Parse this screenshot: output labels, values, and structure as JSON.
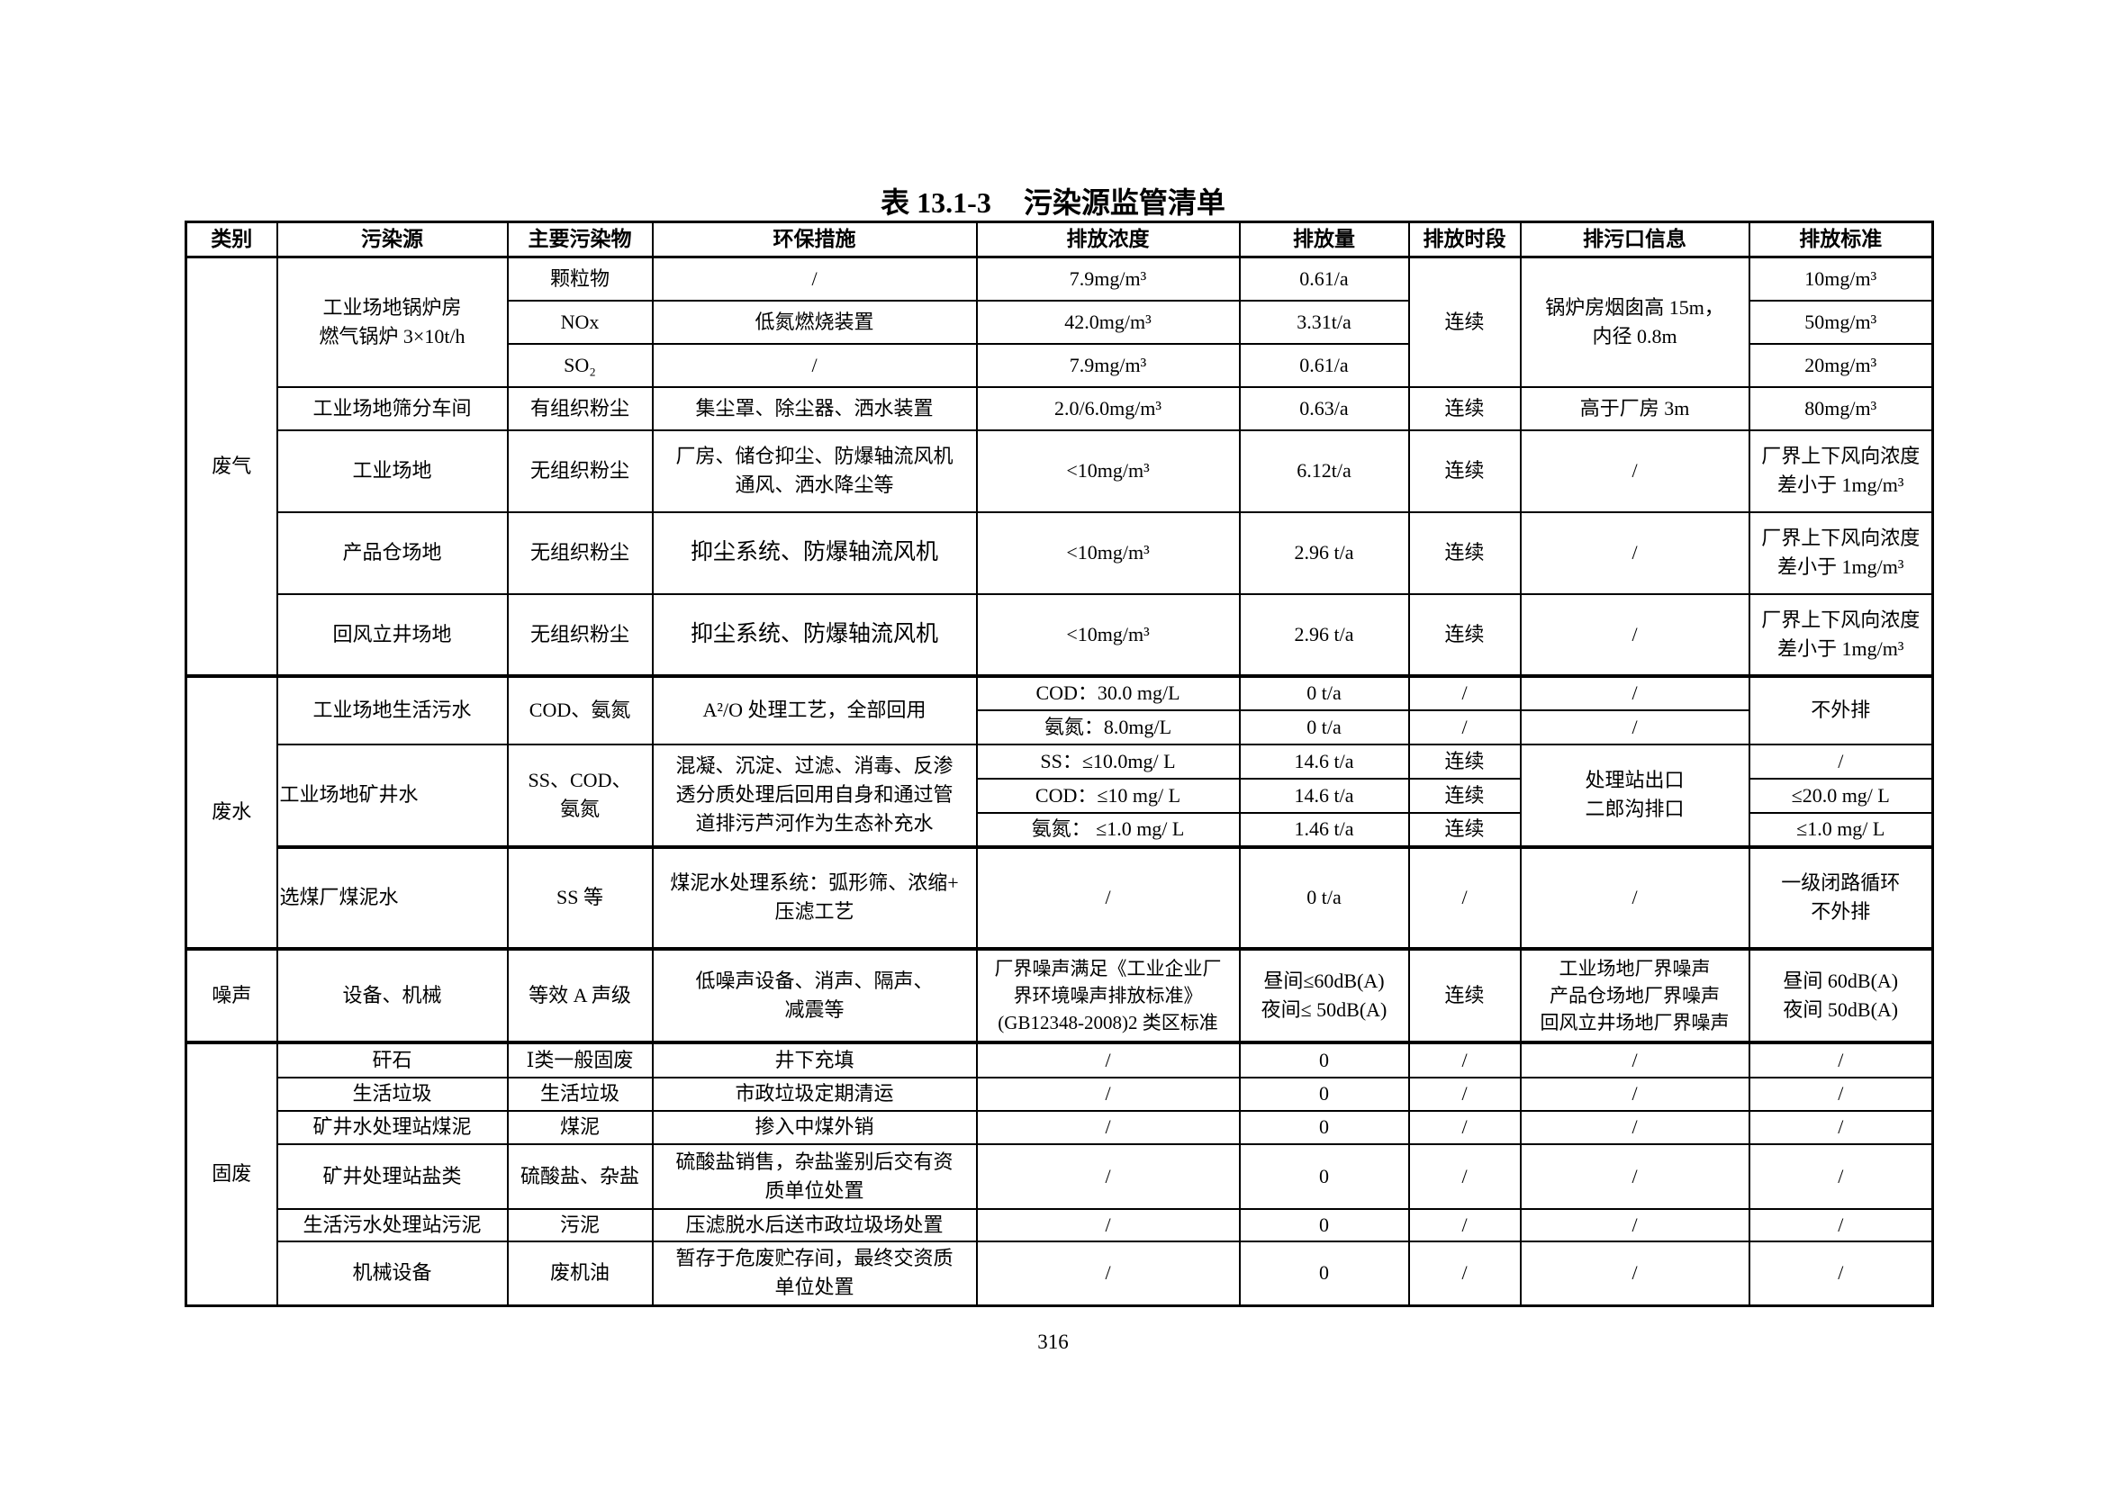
{
  "title": {
    "number": "表 13.1-3",
    "text": "污染源监管清单"
  },
  "headers": [
    "类别",
    "污染源",
    "主要污染物",
    "环保措施",
    "排放浓度",
    "排放量",
    "排放时段",
    "排污口信息",
    "排放标准"
  ],
  "gas": {
    "category": "废气",
    "boiler": {
      "source": "工业场地锅炉房\n燃气锅炉 3×10t/h",
      "period": "连续",
      "outlet": "锅炉房烟囱高 15m，\n内径 0.8m",
      "items": [
        {
          "pollutant": "颗粒物",
          "measure": "/",
          "conc": "7.9mg/m³",
          "amount": "0.61/a",
          "standard": "10mg/m³"
        },
        {
          "pollutant": "NOx",
          "measure": "低氮燃烧装置",
          "conc": "42.0mg/m³",
          "amount": "3.31t/a",
          "standard": "50mg/m³"
        },
        {
          "pollutant": "SO₂",
          "measure": "/",
          "conc": "7.9mg/m³",
          "amount": "0.61/a",
          "standard": "20mg/m³"
        }
      ]
    },
    "rows": [
      {
        "source": "工业场地筛分车间",
        "pollutant": "有组织粉尘",
        "measure": "集尘罩、除尘器、洒水装置",
        "conc": "2.0/6.0mg/m³",
        "amount": "0.63/a",
        "period": "连续",
        "outlet": "高于厂房 3m",
        "standard": "80mg/m³"
      },
      {
        "source": "工业场地",
        "pollutant": "无组织粉尘",
        "measure": "厂房、储仓抑尘、防爆轴流风机\n通风、洒水降尘等",
        "conc": "<10mg/m³",
        "amount": "6.12t/a",
        "period": "连续",
        "outlet": "/",
        "standard": "厂界上下风向浓度\n差小于 1mg/m³"
      },
      {
        "source": "产品仓场地",
        "pollutant": "无组织粉尘",
        "measure": "抑尘系统、防爆轴流风机",
        "conc": "<10mg/m³",
        "amount": "2.96 t/a",
        "period": "连续",
        "outlet": "/",
        "standard": "厂界上下风向浓度\n差小于 1mg/m³"
      },
      {
        "source": "回风立井场地",
        "pollutant": "无组织粉尘",
        "measure": "抑尘系统、防爆轴流风机",
        "conc": "<10mg/m³",
        "amount": "2.96 t/a",
        "period": "连续",
        "outlet": "/",
        "standard": "厂界上下风向浓度\n差小于 1mg/m³"
      }
    ]
  },
  "water": {
    "category": "废水",
    "domestic": {
      "source": "工业场地生活污水",
      "pollutant": "COD、氨氮",
      "measure": "A²/O 处理工艺，全部回用",
      "standard": "不外排",
      "items": [
        {
          "conc": "COD：30.0 mg/L",
          "amount": "0 t/a",
          "period": "/",
          "outlet": "/"
        },
        {
          "conc": "氨氮：8.0mg/L",
          "amount": "0 t/a",
          "period": "/",
          "outlet": "/"
        }
      ]
    },
    "mine": {
      "source": "工业场地矿井水",
      "pollutant": "SS、COD、\n氨氮",
      "measure": "混凝、沉淀、过滤、消毒、反渗\n透分质处理后回用自身和通过管\n道排污芦河作为生态补充水",
      "outlet": "处理站出口\n二郎沟排口",
      "items": [
        {
          "conc": "SS：≤10.0mg/ L",
          "amount": "14.6 t/a",
          "period": "连续",
          "standard": "/"
        },
        {
          "conc": "COD：≤10 mg/ L",
          "amount": "14.6 t/a",
          "period": "连续",
          "standard": "≤20.0 mg/ L"
        },
        {
          "conc": "氨氮：  ≤1.0 mg/ L",
          "amount": "1.46 t/a",
          "period": "连续",
          "standard": "≤1.0 mg/ L"
        }
      ]
    },
    "slime": {
      "source": "选煤厂煤泥水",
      "pollutant": "SS 等",
      "measure": "煤泥水处理系统：弧形筛、浓缩+\n压滤工艺",
      "conc": "/",
      "amount": "0 t/a",
      "period": "/",
      "outlet": "/",
      "standard": "一级闭路循环\n不外排"
    }
  },
  "noise": {
    "category": "噪声",
    "source": "设备、机械",
    "pollutant": "等效 A 声级",
    "measure": "低噪声设备、消声、隔声、\n减震等",
    "conc": "厂界噪声满足《工业企业厂\n界环境噪声排放标准》\n(GB12348-2008)2 类区标准",
    "amount": "昼间≤60dB(A)\n夜间≤ 50dB(A)",
    "period": "连续",
    "outlet": "工业场地厂界噪声\n产品仓场地厂界噪声\n回风立井场地厂界噪声",
    "standard": "昼间 60dB(A)\n夜间 50dB(A)"
  },
  "solid": {
    "category": "固废",
    "rows": [
      {
        "source": "矸石",
        "pollutant": "Ⅰ类一般固废",
        "measure": "井下充填",
        "conc": "/",
        "amount": "0",
        "period": "/",
        "outlet": "/",
        "standard": "/"
      },
      {
        "source": "生活垃圾",
        "pollutant": "生活垃圾",
        "measure": "市政垃圾定期清运",
        "conc": "/",
        "amount": "0",
        "period": "/",
        "outlet": "/",
        "standard": "/"
      },
      {
        "source": "矿井水处理站煤泥",
        "pollutant": "煤泥",
        "measure": "掺入中煤外销",
        "conc": "/",
        "amount": "0",
        "period": "/",
        "outlet": "/",
        "standard": "/"
      },
      {
        "source": "矿井处理站盐类",
        "pollutant": "硫酸盐、杂盐",
        "measure": "硫酸盐销售，杂盐鉴别后交有资\n质单位处置",
        "conc": "/",
        "amount": "0",
        "period": "/",
        "outlet": "/",
        "standard": "/"
      },
      {
        "source": "生活污水处理站污泥",
        "pollutant": "污泥",
        "measure": "压滤脱水后送市政垃圾场处置",
        "conc": "/",
        "amount": "0",
        "period": "/",
        "outlet": "/",
        "standard": "/"
      },
      {
        "source": "机械设备",
        "pollutant": "废机油",
        "measure": "暂存于危废贮存间，最终交资质\n单位处置",
        "conc": "/",
        "amount": "0",
        "period": "/",
        "outlet": "/",
        "standard": "/"
      }
    ]
  },
  "page_number": "316"
}
